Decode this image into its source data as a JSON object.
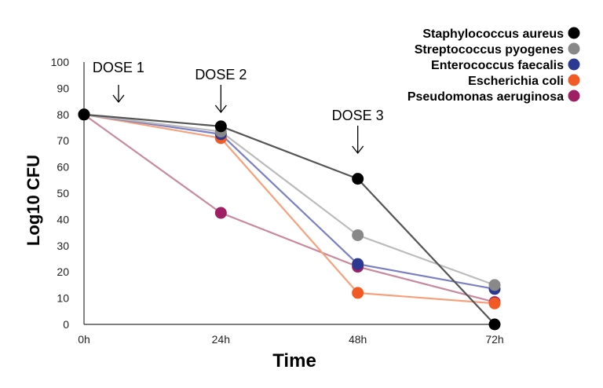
{
  "chart_data": {
    "type": "line",
    "title": "",
    "xlabel": "Time",
    "ylabel": "Log10 CFU",
    "categories": [
      "0h",
      "24h",
      "48h",
      "72h"
    ],
    "ylim": [
      0,
      100
    ],
    "yticks": [
      0,
      10,
      20,
      30,
      40,
      50,
      60,
      70,
      80,
      90,
      100
    ],
    "grid": false,
    "legend_position": "top-right",
    "series": [
      {
        "name": "Staphylococcus aureus",
        "marker_color": "#000000",
        "line_color": "#555555",
        "values": [
          80,
          75.5,
          55.5,
          0
        ]
      },
      {
        "name": "Streptococcus pyogenes",
        "marker_color": "#888888",
        "line_color": "#bbbbbb",
        "values": [
          80,
          73.5,
          34,
          15
        ]
      },
      {
        "name": "Enterococcus faecalis",
        "marker_color": "#2b3990",
        "line_color": "#7b7fc4",
        "values": [
          80,
          72.5,
          23,
          13.5
        ]
      },
      {
        "name": "Escherichia coli",
        "marker_color": "#f15a24",
        "line_color": "#f7a07a",
        "values": [
          80,
          71,
          12,
          8
        ]
      },
      {
        "name": "Pseudomonas aeruginosa",
        "marker_color": "#9e1f63",
        "line_color": "#c98a9f",
        "values": [
          80,
          42.5,
          22,
          8.5
        ]
      }
    ],
    "annotations": [
      {
        "text": "DOSE 1",
        "x_index": 0.08,
        "arrow": "down"
      },
      {
        "text": "DOSE 2",
        "x_index": 1,
        "arrow": "down"
      },
      {
        "text": "DOSE 3",
        "x_index": 2,
        "arrow": "down"
      }
    ]
  }
}
